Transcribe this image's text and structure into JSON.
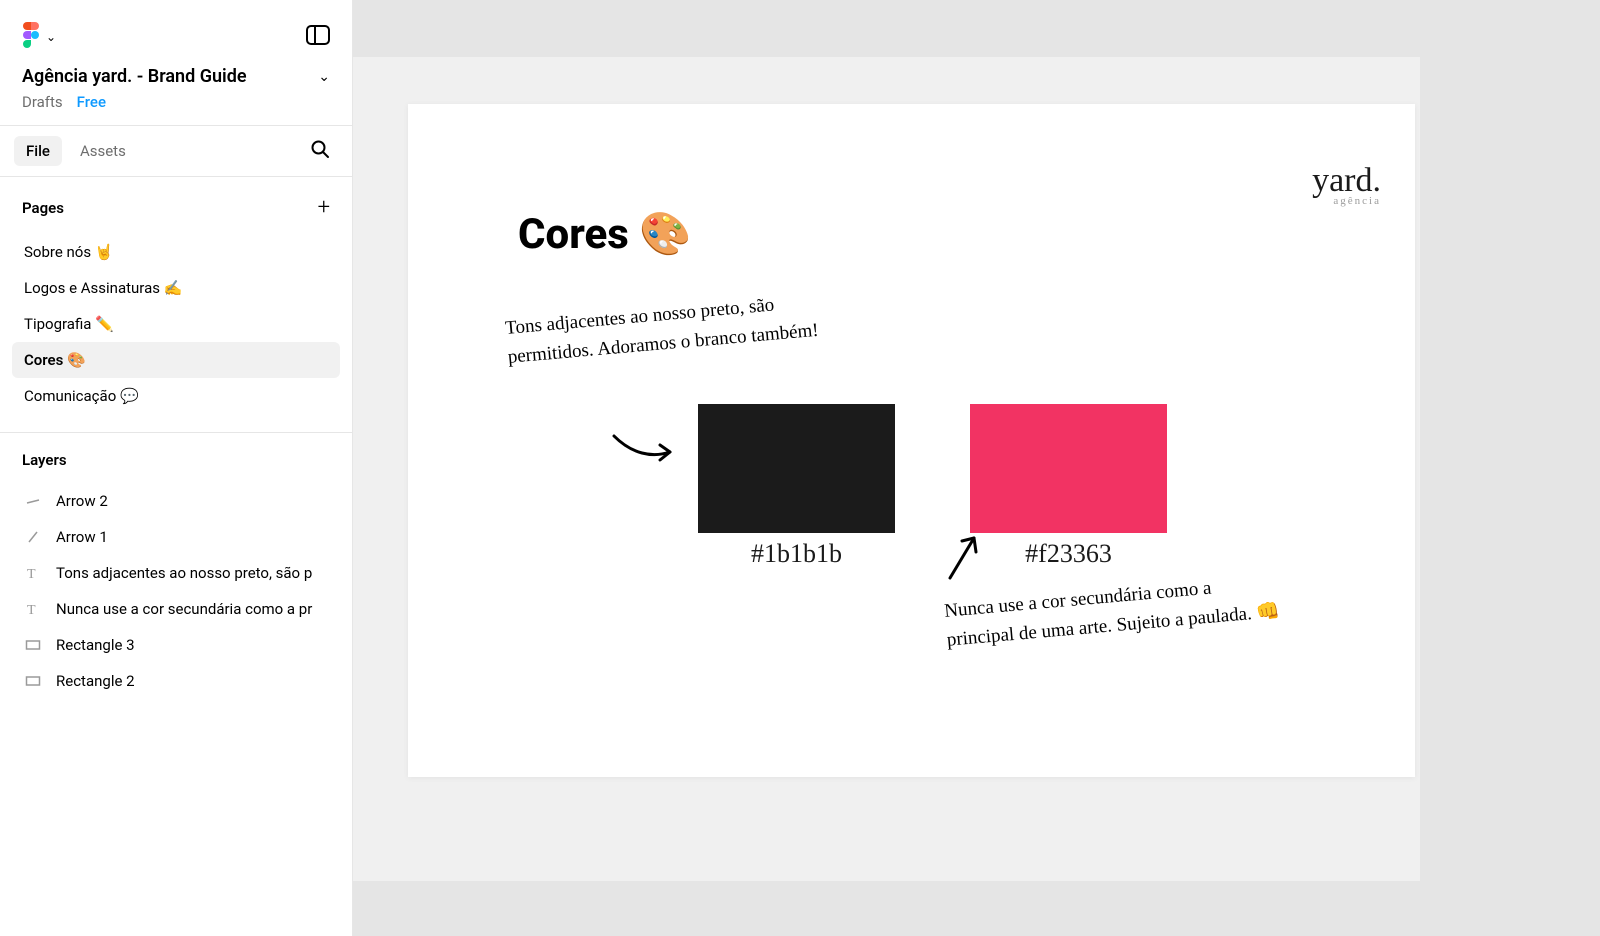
{
  "file": {
    "title": "Agência yard. - Brand Guide",
    "drafts_label": "Drafts",
    "free_label": "Free"
  },
  "tabs": {
    "file_label": "File",
    "assets_label": "Assets"
  },
  "pages": {
    "header": "Pages",
    "items": [
      "Sobre nós 🤘",
      "Logos e Assinaturas ✍️",
      "Tipografia ✏️",
      "Cores 🎨",
      "Comunicação 💬"
    ],
    "selected_index": 3
  },
  "layers": {
    "header": "Layers",
    "items": [
      {
        "icon": "arrow",
        "label": "Arrow 2"
      },
      {
        "icon": "arrow-diag",
        "label": "Arrow 1"
      },
      {
        "icon": "text",
        "label": "Tons adjacentes ao nosso preto, são p"
      },
      {
        "icon": "text",
        "label": "Nunca use a cor secundária como a pr"
      },
      {
        "icon": "rect",
        "label": "Rectangle 3"
      },
      {
        "icon": "rect",
        "label": "Rectangle 2"
      }
    ]
  },
  "canvas": {
    "bg_outer": "#f0f0f0",
    "bg_area": "#e5e5e5",
    "frame_bg": "#ffffff",
    "brand_main": "yard.",
    "brand_sub": "agência",
    "heading": "Cores 🎨",
    "note1": "Tons adjacentes ao nosso preto, são permitidos. Adoramos o branco também!",
    "note2": "Nunca use a cor secundária como a principal de uma arte. Sujeito a paulada. 👊",
    "swatches": [
      {
        "color": "#1b1b1b",
        "label": "#1b1b1b"
      },
      {
        "color": "#f23363",
        "label": "#f23363"
      }
    ]
  }
}
